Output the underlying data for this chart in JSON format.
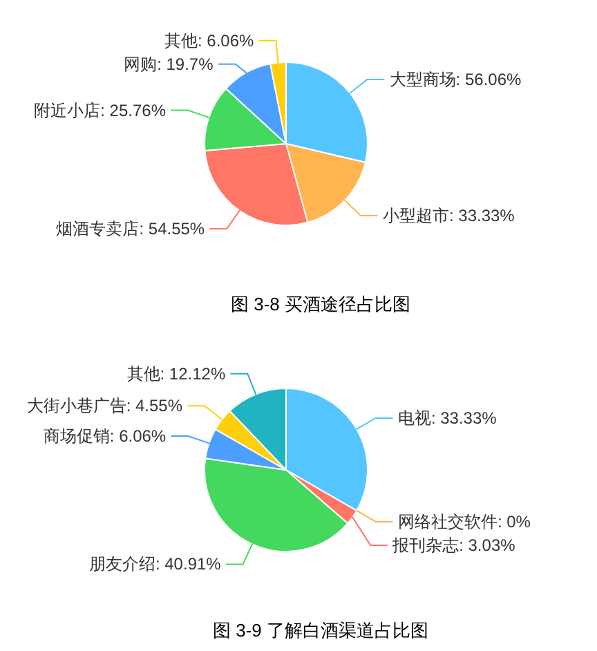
{
  "chart_data": [
    {
      "type": "pie",
      "categories": [
        "大型商场",
        "小型超市",
        "烟酒专卖店",
        "附近小店",
        "网购",
        "其他"
      ],
      "values": [
        56.06,
        33.33,
        54.55,
        25.76,
        19.7,
        6.06
      ],
      "colors": [
        "#55c5ff",
        "#ffb450",
        "#ff7566",
        "#44d95e",
        "#4d9fff",
        "#ffcf0d"
      ],
      "value_labels": [
        "56.06%",
        "33.33%",
        "54.55%",
        "25.76%",
        "19.7%",
        "6.06%"
      ],
      "annotations": [
        "图 3-8 买酒途径占比图"
      ]
    },
    {
      "type": "pie",
      "categories": [
        "电视",
        "网络社交软件",
        "报刊杂志",
        "朋友介绍",
        "商场促销",
        "大街小巷广告",
        "其他"
      ],
      "values": [
        33.33,
        0,
        3.03,
        40.91,
        6.06,
        4.55,
        12.12
      ],
      "colors": [
        "#55c5ff",
        "#ffb450",
        "#ff7566",
        "#44d95e",
        "#4d9fff",
        "#ffcf0d",
        "#22b3c3"
      ],
      "value_labels": [
        "33.33%",
        "0%",
        "3.03%",
        "40.91%",
        "6.06%",
        "4.55%",
        "12.12%"
      ],
      "annotations": [
        "图 3-9 了解白酒渠道占比图"
      ]
    }
  ]
}
